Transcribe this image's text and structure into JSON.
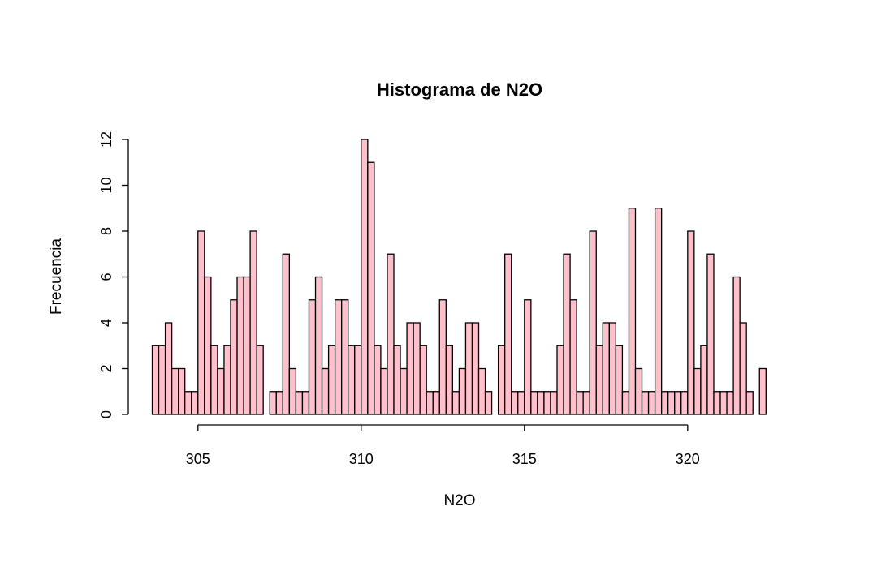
{
  "chart_data": {
    "type": "bar",
    "title": "Histograma de N2O",
    "xlabel": "N2O",
    "ylabel": "Frecuencia",
    "bin_start": 303.6,
    "bin_width": 0.2,
    "values": [
      3,
      3,
      4,
      2,
      2,
      1,
      1,
      8,
      6,
      3,
      2,
      3,
      5,
      6,
      6,
      8,
      3,
      0,
      1,
      1,
      7,
      2,
      1,
      1,
      5,
      6,
      2,
      3,
      5,
      5,
      3,
      3,
      12,
      11,
      3,
      2,
      7,
      3,
      2,
      4,
      4,
      3,
      1,
      1,
      5,
      3,
      1,
      2,
      4,
      4,
      2,
      1,
      0,
      3,
      7,
      1,
      1,
      5,
      1,
      1,
      1,
      1,
      3,
      7,
      5,
      1,
      1,
      8,
      3,
      4,
      4,
      3,
      1,
      9,
      2,
      1,
      1,
      9,
      1,
      1,
      1,
      1,
      8,
      2,
      3,
      7,
      1,
      1,
      1,
      6,
      4,
      1,
      0,
      2
    ],
    "xlim": [
      303.6,
      322.4
    ],
    "ylim": [
      0,
      12
    ],
    "xticks": [
      305,
      310,
      315,
      320
    ],
    "yticks": [
      0,
      2,
      4,
      6,
      8,
      10,
      12
    ],
    "bar_color": "#ffc0cb",
    "border_color": "#000000",
    "grid": false,
    "legend": "none"
  }
}
